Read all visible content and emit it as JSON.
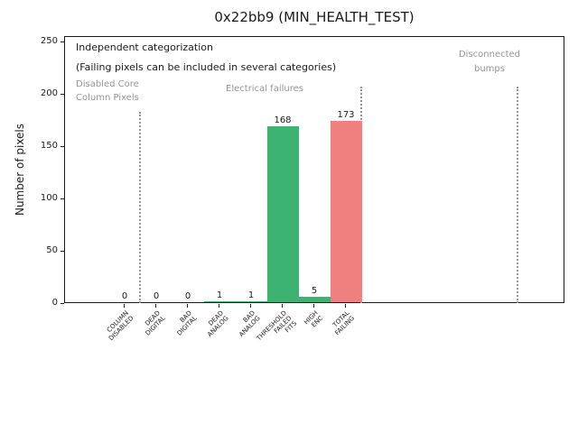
{
  "chart_data": {
    "type": "bar",
    "title": "0x22bb9 (MIN_HEALTH_TEST)",
    "ylabel": "Number of pixels",
    "xlabel": "",
    "ylim": [
      0,
      255
    ],
    "yticks": [
      0,
      50,
      100,
      150,
      200,
      250
    ],
    "grid": false,
    "legend": null,
    "categories": [
      "COLUMN\nDISABLED",
      "DEAD\nDIGITAL",
      "BAD\nDIGITAL",
      "DEAD\nANALOG",
      "BAD\nANALOG",
      "THRESHOLD\nFAILED\nFITS",
      "HIGH\nENC",
      "TOTAL\nFAILING"
    ],
    "values": [
      0,
      0,
      0,
      1,
      1,
      168,
      5,
      173
    ],
    "bar_colors": [
      "#3cb371",
      "#3cb371",
      "#3cb371",
      "#3cb371",
      "#3cb371",
      "#3cb371",
      "#3cb371",
      "#f08080"
    ],
    "annotations": {
      "independent": {
        "text": "Independent categorization",
        "color": "#1a1a1a"
      },
      "failing_note": {
        "text": "(Failing pixels can be included in several categories)",
        "color": "#1a1a1a"
      },
      "disabled_core": {
        "text": "Disabled Core\nColumn Pixels",
        "color": "#949494"
      },
      "electrical": {
        "text": "Electrical failures",
        "color": "#949494"
      },
      "disconnected": {
        "text": "Disconnected\nbumps",
        "color": "#949494"
      }
    },
    "separators": {
      "style": "dotted",
      "color": "#949494",
      "count": 3
    },
    "colors": {
      "bar_green": "#3cb371",
      "bar_red": "#f08080",
      "muted_text": "#949494",
      "axis": "#1a1a1a"
    }
  }
}
